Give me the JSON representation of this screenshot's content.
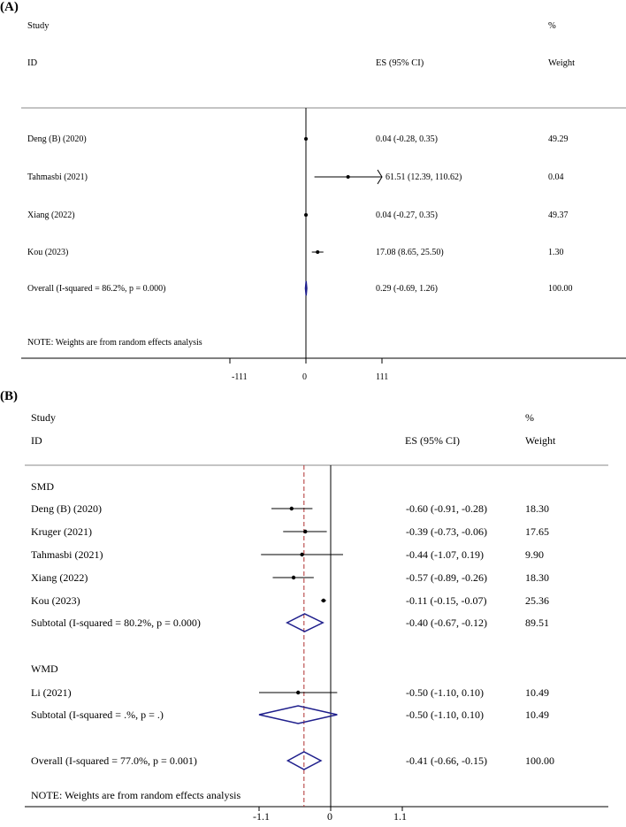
{
  "chart_data": [
    {
      "panel_label": "(A)",
      "type": "forest",
      "headers": {
        "study": "Study",
        "id": "ID",
        "es": "ES (95% CI)",
        "pct": "%",
        "weight": "Weight"
      },
      "rows": [
        {
          "study": "Deng (B) (2020)",
          "es": 0.04,
          "lo": -0.28,
          "hi": 0.35,
          "es_text": "0.04 (-0.28, 0.35)",
          "weight": "49.29"
        },
        {
          "study": "Tahmasbi (2021)",
          "es": 61.51,
          "lo": 12.39,
          "hi": 110.62,
          "es_text": "61.51 (12.39, 110.62)",
          "weight": "0.04",
          "arrow": true
        },
        {
          "study": "Xiang  (2022)",
          "es": 0.04,
          "lo": -0.27,
          "hi": 0.35,
          "es_text": "0.04 (-0.27, 0.35)",
          "weight": "49.37"
        },
        {
          "study": "Kou (2023)",
          "es": 17.08,
          "lo": 8.65,
          "hi": 25.5,
          "es_text": "17.08 (8.65, 25.50)",
          "weight": "1.30"
        }
      ],
      "overall": {
        "label": "Overall  (I-squared = 86.2%, p = 0.000)",
        "es": 0.29,
        "lo": -0.69,
        "hi": 1.26,
        "es_text": "0.29 (-0.69, 1.26)",
        "weight": "100.00"
      },
      "note": "NOTE: Weights are from random effects analysis",
      "x_ticks": [
        -111,
        0,
        111
      ],
      "x_tick_labels": [
        "-111",
        "0",
        "111"
      ],
      "xlim": [
        -111,
        111
      ],
      "null_line": 0
    },
    {
      "panel_label": "(B)",
      "type": "forest",
      "headers": {
        "study": "Study",
        "id": "ID",
        "es": "ES (95% CI)",
        "pct": "%",
        "weight": "Weight"
      },
      "groups": [
        {
          "name": "SMD",
          "rows": [
            {
              "study": "Deng (B) (2020)",
              "es": -0.6,
              "lo": -0.91,
              "hi": -0.28,
              "es_text": "-0.60 (-0.91, -0.28)",
              "weight": "18.30"
            },
            {
              "study": "Kruger (2021)",
              "es": -0.39,
              "lo": -0.73,
              "hi": -0.06,
              "es_text": "-0.39 (-0.73, -0.06)",
              "weight": "17.65"
            },
            {
              "study": "Tahmasbi (2021)",
              "es": -0.44,
              "lo": -1.07,
              "hi": 0.19,
              "es_text": "-0.44 (-1.07, 0.19)",
              "weight": "9.90"
            },
            {
              "study": "Xiang  (2022)",
              "es": -0.57,
              "lo": -0.89,
              "hi": -0.26,
              "es_text": "-0.57 (-0.89, -0.26)",
              "weight": "18.30"
            },
            {
              "study": "Kou (2023)",
              "es": -0.11,
              "lo": -0.15,
              "hi": -0.07,
              "es_text": "-0.11 (-0.15, -0.07)",
              "weight": "25.36"
            }
          ],
          "subtotal": {
            "label": "Subtotal  (I-squared = 80.2%, p = 0.000)",
            "es": -0.4,
            "lo": -0.67,
            "hi": -0.12,
            "es_text": "-0.40 (-0.67, -0.12)",
            "weight": "89.51"
          }
        },
        {
          "name": "WMD",
          "rows": [
            {
              "study": "Li  (2021)",
              "es": -0.5,
              "lo": -1.1,
              "hi": 0.1,
              "es_text": "-0.50 (-1.10, 0.10)",
              "weight": "10.49"
            }
          ],
          "subtotal": {
            "label": "Subtotal  (I-squared = .%, p = .)",
            "es": -0.5,
            "lo": -1.1,
            "hi": 0.1,
            "es_text": "-0.50 (-1.10, 0.10)",
            "weight": "10.49"
          }
        }
      ],
      "overall": {
        "label": "Overall  (I-squared = 77.0%, p = 0.001)",
        "es": -0.41,
        "lo": -0.66,
        "hi": -0.15,
        "es_text": "-0.41 (-0.66, -0.15)",
        "weight": "100.00"
      },
      "note": "NOTE: Weights are from random effects analysis",
      "x_ticks": [
        -1.1,
        0,
        1.1
      ],
      "x_tick_labels": [
        "-1.1",
        "0",
        "1.1"
      ],
      "xlim": [
        -1.1,
        1.1
      ],
      "null_line": 0,
      "pooled_line": -0.41,
      "colors": {
        "diamond": "#1f1f8c",
        "pooled_line": "#b03030"
      }
    }
  ]
}
